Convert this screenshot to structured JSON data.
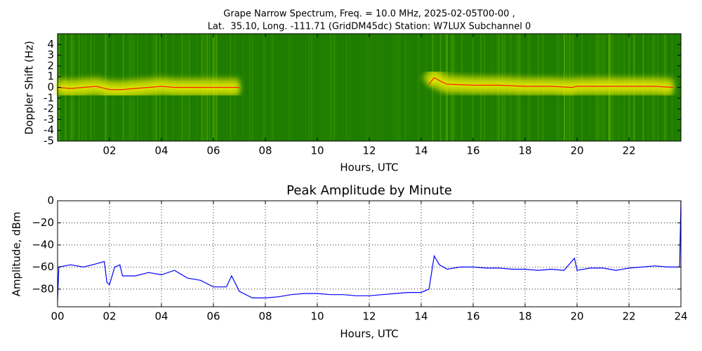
{
  "chart_data": [
    {
      "type": "spectrogram",
      "title": "Grape Narrow Spectrum, Freq. = 10.0 MHz, 2025-02-05T00-00 ,",
      "subtitle": "Lat.  35.10, Long. -111.71 (GridDM45dc) Station: W7LUX Subchannel 0",
      "x_label": "Hours, UTC",
      "y_label": "Doppler Shift (Hz)",
      "xlim": [
        0,
        24
      ],
      "ylim": [
        -5,
        5
      ],
      "xticks": [
        {
          "value": 2,
          "label": "02"
        },
        {
          "value": 4,
          "label": "04"
        },
        {
          "value": 6,
          "label": "06"
        },
        {
          "value": 8,
          "label": "08"
        },
        {
          "value": 10,
          "label": "10"
        },
        {
          "value": 12,
          "label": "12"
        },
        {
          "value": 14,
          "label": "14"
        },
        {
          "value": 16,
          "label": "16"
        },
        {
          "value": 18,
          "label": "18"
        },
        {
          "value": 20,
          "label": "20"
        },
        {
          "value": 22,
          "label": "22"
        }
      ],
      "yticks": [
        -5,
        -4,
        -3,
        -2,
        -1,
        0,
        1,
        2,
        3,
        4
      ],
      "grid": false,
      "series": [
        {
          "color": "#ff2000",
          "x": [
            0,
            0.5,
            1,
            1.5,
            2,
            2.5,
            3,
            3.5,
            4,
            4.5,
            5,
            5.5,
            6,
            6.5,
            7,
            10,
            14.3,
            14.5,
            14.8,
            15,
            16,
            17,
            18,
            19,
            19.8,
            20,
            21,
            22,
            23,
            23.7
          ],
          "values": [
            0,
            -0.1,
            0,
            0.1,
            -0.2,
            -0.2,
            -0.1,
            0,
            0.1,
            0,
            0,
            0,
            0,
            0,
            0,
            null,
            0.3,
            0.9,
            0.5,
            0.3,
            0.2,
            0.2,
            0.1,
            0.1,
            0,
            0.1,
            0.1,
            0.1,
            0.1,
            0
          ]
        }
      ]
    },
    {
      "type": "line",
      "title": "Peak Amplitude by Minute",
      "x_label": "Hours, UTC",
      "y_label": "Amplitude, dBm",
      "xlim": [
        0,
        24
      ],
      "ylim": [
        -96,
        0
      ],
      "xticks": [
        {
          "value": 0,
          "label": "00"
        },
        {
          "value": 2,
          "label": "02"
        },
        {
          "value": 4,
          "label": "04"
        },
        {
          "value": 6,
          "label": "06"
        },
        {
          "value": 8,
          "label": "08"
        },
        {
          "value": 10,
          "label": "10"
        },
        {
          "value": 12,
          "label": "12"
        },
        {
          "value": 14,
          "label": "14"
        },
        {
          "value": 16,
          "label": "16"
        },
        {
          "value": 18,
          "label": "18"
        },
        {
          "value": 20,
          "label": "20"
        },
        {
          "value": 22,
          "label": "22"
        },
        {
          "value": 24,
          "label": "24"
        }
      ],
      "yticks": [
        {
          "value": -80,
          "label": "−80"
        },
        {
          "value": -60,
          "label": "−60"
        },
        {
          "value": -40,
          "label": "−40"
        },
        {
          "value": -20,
          "label": "−20"
        },
        0
      ],
      "grid": true,
      "series": [
        {
          "color": "#0000ff",
          "x": [
            0,
            0.05,
            0.5,
            1,
            1.5,
            1.8,
            1.9,
            2,
            2.2,
            2.4,
            2.5,
            3,
            3.5,
            4,
            4.5,
            5,
            5.5,
            6,
            6.5,
            6.7,
            7,
            7.5,
            8,
            8.5,
            9,
            9.5,
            10,
            10.5,
            11,
            11.5,
            12,
            12.5,
            13,
            13.5,
            14,
            14.3,
            14.5,
            14.7,
            15,
            15.5,
            16,
            16.5,
            17,
            17.5,
            18,
            18.5,
            19,
            19.5,
            19.9,
            20,
            20.5,
            21,
            21.5,
            22,
            22.5,
            23,
            23.5,
            23.95,
            24
          ],
          "values": [
            -90,
            -60,
            -58,
            -60,
            -57,
            -55,
            -74,
            -76,
            -60,
            -58,
            -68,
            -68,
            -65,
            -67,
            -63,
            -70,
            -72,
            -78,
            -78,
            -68,
            -82,
            -88,
            -88,
            -87,
            -85,
            -84,
            -84,
            -85,
            -85,
            -86,
            -86,
            -85,
            -84,
            -83,
            -83,
            -80,
            -50,
            -58,
            -62,
            -60,
            -60,
            -61,
            -61,
            -62,
            -62,
            -63,
            -62,
            -63,
            -52,
            -63,
            -61,
            -61,
            -63,
            -61,
            -60,
            -59,
            -60,
            -60,
            0
          ]
        }
      ]
    }
  ]
}
